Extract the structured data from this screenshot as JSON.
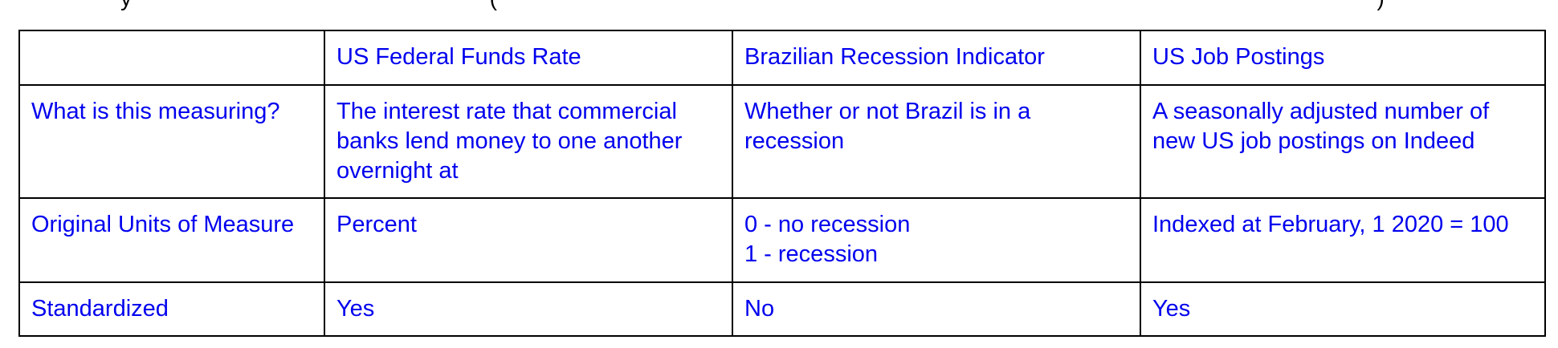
{
  "top_text": {
    "part1": "y",
    "part2": "(",
    "part3": ")"
  },
  "table": {
    "columns": [
      "",
      "US Federal Funds Rate",
      "Brazilian Recession Indicator",
      "US Job Postings"
    ],
    "rows": [
      {
        "label": "What is this measuring?",
        "cells": [
          "The interest rate that commercial banks lend money to one another overnight at",
          "Whether or not Brazil is in a recession",
          "A seasonally adjusted number of new US job postings on Indeed"
        ]
      },
      {
        "label": "Original Units of Measure",
        "cells": [
          "Percent",
          [
            "0 - no recession",
            "1 - recession"
          ],
          "Indexed at February, 1 2020 = 100"
        ]
      },
      {
        "label": "Standardized",
        "cells": [
          "Yes",
          "No",
          "Yes"
        ]
      }
    ]
  }
}
